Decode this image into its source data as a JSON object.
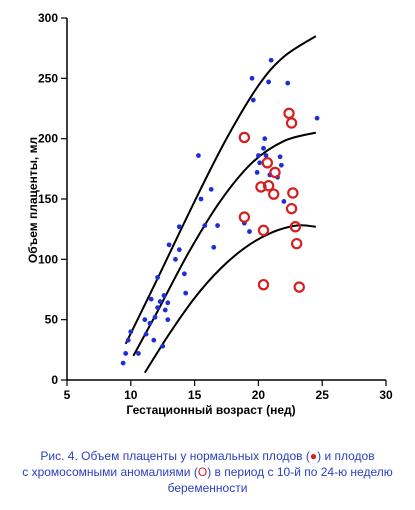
{
  "chart_data": {
    "type": "scatter",
    "xlabel": "Гестационный возраст (нед)",
    "ylabel": "Объем плаценты, мл",
    "xlim": [
      5,
      30
    ],
    "ylim": [
      0,
      300
    ],
    "xticks": [
      5,
      10,
      15,
      20,
      25,
      30
    ],
    "yticks": [
      0,
      50,
      100,
      150,
      200,
      250,
      300
    ],
    "grid": false,
    "colors": {
      "normal": "#1f2fd8",
      "anomaly": "#d42020",
      "curve": "#000000"
    },
    "series": [
      {
        "points": [
          [
            9.4,
            14
          ],
          [
            9.6,
            22
          ],
          [
            9.8,
            33
          ],
          [
            10.0,
            40
          ],
          [
            10.6,
            22
          ],
          [
            11.1,
            50
          ],
          [
            11.2,
            38
          ],
          [
            11.5,
            47
          ],
          [
            11.6,
            67
          ],
          [
            11.8,
            33
          ],
          [
            11.9,
            52
          ],
          [
            12.1,
            85
          ],
          [
            12.1,
            60
          ],
          [
            12.3,
            65
          ],
          [
            12.5,
            28
          ],
          [
            12.6,
            70
          ],
          [
            12.7,
            58
          ],
          [
            12.9,
            50
          ],
          [
            12.9,
            64
          ],
          [
            13.0,
            112
          ],
          [
            13.5,
            100
          ],
          [
            13.8,
            127
          ],
          [
            13.8,
            108
          ],
          [
            14.2,
            88
          ],
          [
            14.3,
            72
          ],
          [
            15.3,
            186
          ],
          [
            15.5,
            150
          ],
          [
            15.8,
            128
          ],
          [
            16.3,
            158
          ],
          [
            16.5,
            110
          ],
          [
            16.8,
            128
          ],
          [
            18.9,
            130
          ],
          [
            19.5,
            250
          ],
          [
            19.6,
            232
          ],
          [
            19.9,
            172
          ],
          [
            20.0,
            186
          ],
          [
            20.1,
            180
          ],
          [
            20.4,
            192
          ],
          [
            20.5,
            200
          ],
          [
            20.6,
            186
          ],
          [
            20.8,
            247
          ],
          [
            20.9,
            170
          ],
          [
            21.0,
            265
          ],
          [
            21.5,
            168
          ],
          [
            21.7,
            185
          ],
          [
            21.8,
            178
          ],
          [
            22.0,
            148
          ],
          [
            22.3,
            246
          ],
          [
            24.6,
            217
          ],
          [
            19.3,
            123
          ]
        ]
      },
      {
        "points": [
          [
            18.9,
            201
          ],
          [
            18.9,
            135
          ],
          [
            20.2,
            160
          ],
          [
            20.4,
            124
          ],
          [
            20.4,
            79
          ],
          [
            20.7,
            180
          ],
          [
            20.8,
            161
          ],
          [
            21.2,
            154
          ],
          [
            21.3,
            172
          ],
          [
            22.4,
            221
          ],
          [
            22.6,
            213
          ],
          [
            22.6,
            142
          ],
          [
            22.7,
            155
          ],
          [
            22.9,
            127
          ],
          [
            23.0,
            113
          ],
          [
            23.2,
            77
          ]
        ]
      }
    ],
    "curves": [
      {
        "points": [
          [
            9.6,
            30
          ],
          [
            12,
            82
          ],
          [
            15,
            148
          ],
          [
            17.5,
            200
          ],
          [
            20,
            244
          ],
          [
            22,
            268
          ],
          [
            24.5,
            285
          ]
        ]
      },
      {
        "points": [
          [
            10.2,
            20
          ],
          [
            12,
            55
          ],
          [
            14.5,
            105
          ],
          [
            17,
            148
          ],
          [
            19.5,
            180
          ],
          [
            22,
            198
          ],
          [
            24.5,
            205
          ]
        ]
      },
      {
        "points": [
          [
            11.1,
            6
          ],
          [
            13,
            38
          ],
          [
            15,
            68
          ],
          [
            17,
            92
          ],
          [
            19,
            110
          ],
          [
            21,
            122
          ],
          [
            23,
            128
          ],
          [
            24.5,
            127
          ]
        ]
      }
    ]
  },
  "caption": {
    "line1_a": "Рис. 4. Объем плаценты у нормальных плодов (",
    "line1_marker": "●",
    "line1_b": ") и плодов",
    "line2_a": "с хромосомными аномалиями (",
    "line2_marker": "O",
    "line2_b": ") в период с 10-й по 24-ю неделю",
    "line3": "беременности"
  }
}
